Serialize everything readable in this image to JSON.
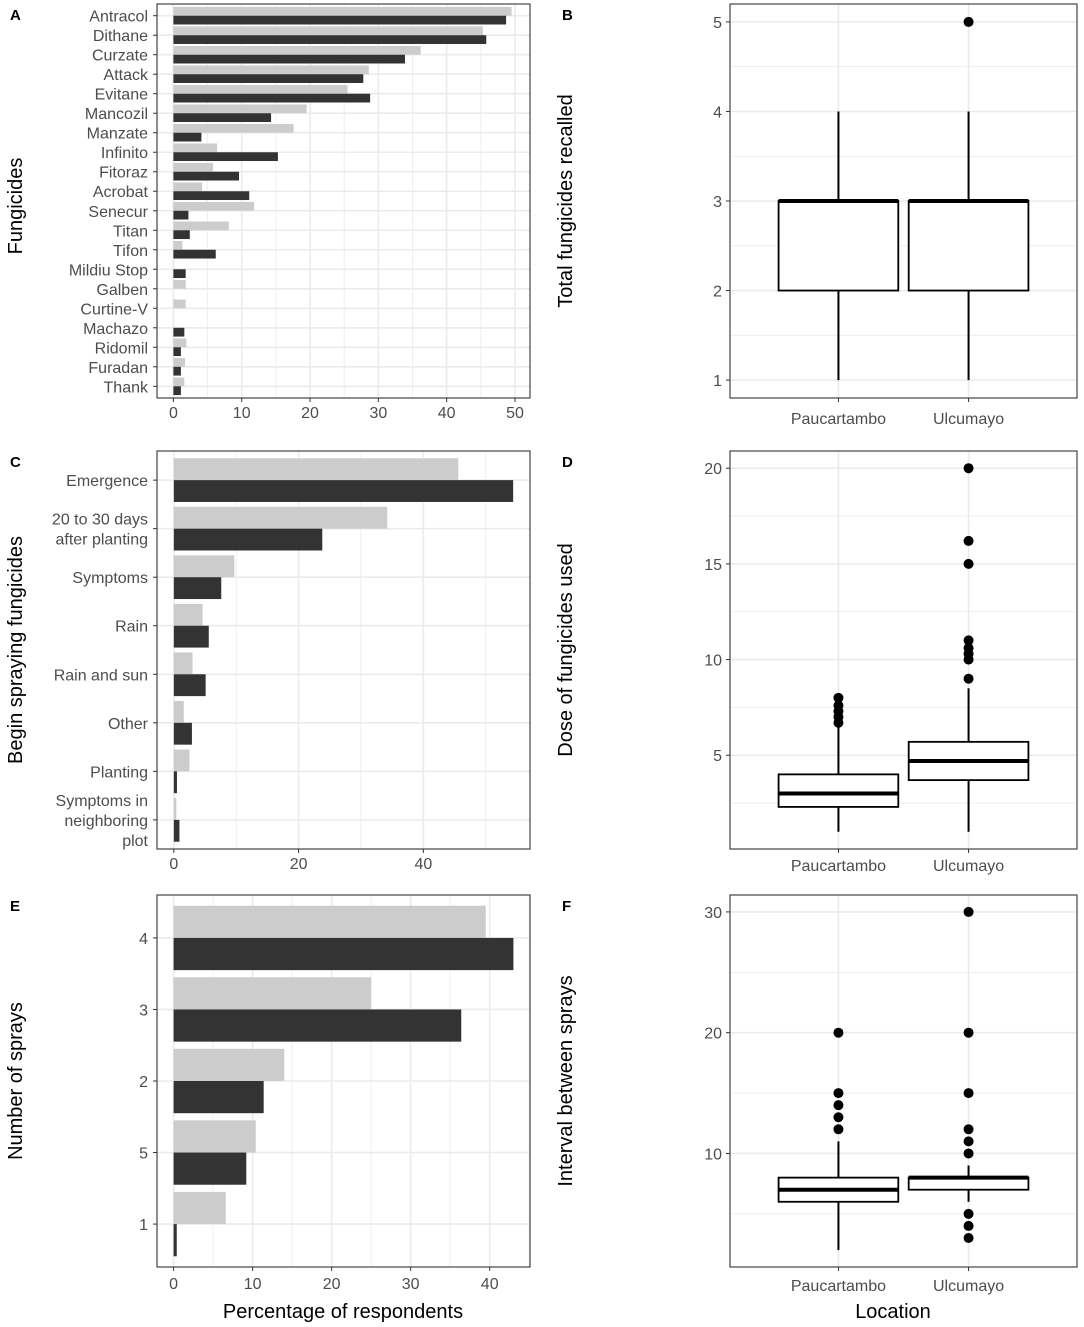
{
  "colors": {
    "light": "#cccccc",
    "dark": "#333333",
    "grid": "#ebebeb",
    "box_fill": "#ffffff",
    "stroke": "#000000"
  },
  "chart_data": [
    {
      "panel": "A",
      "type": "bar",
      "orientation": "horizontal",
      "ylabel": "Fungicides",
      "xlabel": "",
      "categories": [
        "Antracol",
        "Dithane",
        "Curzate",
        "Attack",
        "Evitane",
        "Mancozil",
        "Manzate",
        "Infinito",
        "Fitoraz",
        "Acrobat",
        "Senecur",
        "Titan",
        "Tifon",
        "Mildiu Stop",
        "Galben",
        "Curtine-V",
        "Machazo",
        "Ridomil",
        "Furadan",
        "Thank"
      ],
      "series": [
        {
          "name": "light",
          "values": [
            49.5,
            45.3,
            36.2,
            28.6,
            25.5,
            19.5,
            17.6,
            6.4,
            5.8,
            4.2,
            11.8,
            8.1,
            1.3,
            0,
            1.8,
            1.8,
            0,
            1.9,
            1.7,
            1.6
          ]
        },
        {
          "name": "dark",
          "values": [
            48.7,
            45.8,
            33.9,
            27.8,
            28.8,
            14.3,
            4.1,
            15.3,
            9.6,
            11.1,
            2.2,
            2.4,
            6.2,
            1.8,
            0,
            0,
            1.6,
            1.1,
            1.1,
            1.1
          ]
        }
      ],
      "xticks": [
        "0",
        "10",
        "20",
        "30",
        "40",
        "50"
      ],
      "xlim": [
        -2.4,
        52.2
      ]
    },
    {
      "panel": "B",
      "type": "boxplot",
      "ylabel": "Total fungicides recalled",
      "xlabel": "",
      "categories": [
        "Paucartambo",
        "Ulcumayo"
      ],
      "boxes": [
        {
          "min": 1,
          "q1": 2,
          "median": 3,
          "q3": 3,
          "max": 4,
          "outliers": []
        },
        {
          "min": 1,
          "q1": 2,
          "median": 3,
          "q3": 3,
          "max": 4,
          "outliers": [
            5
          ]
        }
      ],
      "yticks": [
        "1",
        "2",
        "3",
        "4",
        "5"
      ],
      "ylim": [
        0.8,
        5.2
      ]
    },
    {
      "panel": "C",
      "type": "bar",
      "orientation": "horizontal",
      "ylabel": "Begin spraying fungicides",
      "xlabel": "",
      "categories": [
        [
          "Emergence"
        ],
        [
          "20 to 30 days",
          "after planting"
        ],
        [
          "Symptoms"
        ],
        [
          "Rain"
        ],
        [
          "Rain and sun"
        ],
        [
          "Other"
        ],
        [
          "Planting"
        ],
        [
          "Symptoms in",
          "neighboring",
          "plot"
        ]
      ],
      "series": [
        {
          "name": "light",
          "values": [
            45.6,
            34.2,
            9.7,
            4.6,
            3.0,
            1.6,
            2.5,
            0.4
          ]
        },
        {
          "name": "dark",
          "values": [
            54.4,
            23.8,
            7.6,
            5.6,
            5.1,
            2.9,
            0.5,
            0.9
          ]
        }
      ],
      "xticks": [
        "0",
        "20",
        "40"
      ],
      "xlim": [
        -2.7,
        57.1
      ]
    },
    {
      "panel": "D",
      "type": "boxplot",
      "ylabel": "Dose of fungicides used",
      "xlabel": "",
      "categories": [
        "Paucartambo",
        "Ulcumayo"
      ],
      "boxes": [
        {
          "min": 1,
          "q1": 2.3,
          "median": 3,
          "q3": 4,
          "max": 6.5,
          "outliers": [
            6.7,
            7,
            7.3,
            7.6,
            8
          ]
        },
        {
          "min": 1,
          "q1": 3.7,
          "median": 4.7,
          "q3": 5.7,
          "max": 8.5,
          "outliers": [
            9,
            10,
            10.3,
            10.6,
            11,
            15,
            16.2,
            20
          ]
        }
      ],
      "yticks": [
        "5",
        "10",
        "15",
        "20"
      ],
      "ylim": [
        0.1,
        20.9
      ]
    },
    {
      "panel": "E",
      "type": "bar",
      "orientation": "horizontal",
      "ylabel": "Number of sprays",
      "xlabel": "Percentage of respondents",
      "categories": [
        "4",
        "3",
        "2",
        "5",
        "1"
      ],
      "series": [
        {
          "name": "light",
          "values": [
            39.5,
            25,
            14,
            10.4,
            6.6
          ]
        },
        {
          "name": "dark",
          "values": [
            43,
            36.4,
            11.4,
            9.2,
            0.4
          ]
        }
      ],
      "xticks": [
        "0",
        "10",
        "20",
        "30",
        "40"
      ],
      "xlim": [
        -2.1,
        45.1
      ]
    },
    {
      "panel": "F",
      "type": "boxplot",
      "ylabel": "Interval between sprays",
      "xlabel": "Location",
      "categories": [
        "Paucartambo",
        "Ulcumayo"
      ],
      "boxes": [
        {
          "min": 2,
          "q1": 6,
          "median": 7,
          "q3": 8,
          "max": 11,
          "outliers": [
            12,
            13,
            14,
            15,
            20
          ]
        },
        {
          "min": 6,
          "q1": 7,
          "median": 8,
          "q3": 8,
          "max": 9,
          "outliers": [
            3,
            4,
            5,
            10,
            11,
            12,
            15,
            20,
            30
          ]
        }
      ],
      "yticks": [
        "10",
        "20",
        "30"
      ],
      "ylim": [
        0.6,
        31.4
      ]
    }
  ]
}
